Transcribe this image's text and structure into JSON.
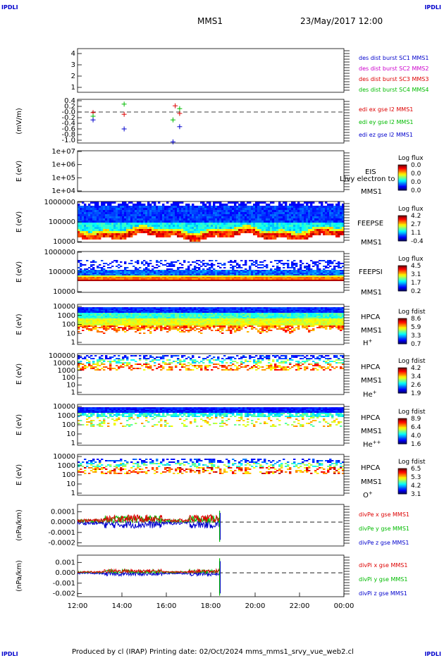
{
  "header": {
    "corner_tl": "IPDLI",
    "corner_tr": "IPDLI",
    "corner_bl": "IPDLI",
    "corner_br": "IPDLI",
    "mission": "MMS1",
    "datetime": "23/May/2017 12:00"
  },
  "footer": {
    "text": "Produced by cl (IRAP)   Printing date: 02/Oct/2024   mms_mms1_srvy_vue_web2.cl"
  },
  "colors": {
    "blue": "#0000cc",
    "magenta": "#cc00cc",
    "red": "#dd0000",
    "green": "#00bb00"
  },
  "chart_data": [
    {
      "id": "des",
      "type": "line",
      "ylabel": "",
      "yticks": [
        "1",
        "2",
        "3",
        "4"
      ],
      "labels": [
        {
          "text": "des dist burst SC1 MMS1",
          "color": "#0000cc"
        },
        {
          "text": "des dist burst SC2 MMS2",
          "color": "#cc00cc"
        },
        {
          "text": "des dist burst SC3 MMS3",
          "color": "#dd0000"
        },
        {
          "text": "des dist burst SC4 MMS4",
          "color": "#00bb00"
        }
      ]
    },
    {
      "id": "edi",
      "type": "scatter",
      "ylabel": "(mV/m)",
      "yticks": [
        "0.4",
        "0.2",
        "-0.0",
        "-0.2",
        "-0.4",
        "-0.6",
        "-0.8",
        "-1.0"
      ],
      "ylim": [
        -1.1,
        0.45
      ],
      "zero_line": true,
      "labels": [
        {
          "text": "edi ex gse l2 MMS1",
          "color": "#dd0000"
        },
        {
          "text": "edi ey gse l2 MMS1",
          "color": "#00bb00"
        },
        {
          "text": "edi ez gse l2 MMS1",
          "color": "#0000cc"
        }
      ],
      "series": [
        {
          "name": "edi ex gse l2 MMS1",
          "color": "#dd0000",
          "points": [
            [
              12.7,
              -0.02
            ],
            [
              14.1,
              -0.08
            ],
            [
              16.4,
              0.22
            ],
            [
              16.6,
              -0.05
            ]
          ]
        },
        {
          "name": "edi ey gse l2 MMS1",
          "color": "#00bb00",
          "points": [
            [
              12.7,
              -0.15
            ],
            [
              14.1,
              0.28
            ],
            [
              16.3,
              -0.28
            ],
            [
              16.6,
              0.12
            ]
          ]
        },
        {
          "name": "edi ez gse l2 MMS1",
          "color": "#0000cc",
          "points": [
            [
              12.7,
              -0.28
            ],
            [
              14.1,
              -0.6
            ],
            [
              16.3,
              -1.06
            ],
            [
              16.6,
              -0.52
            ]
          ]
        }
      ]
    },
    {
      "id": "eis",
      "type": "heatmap",
      "ylabel": "E (eV)",
      "yticks": [
        "1e+07",
        "1e+06",
        "1e+05",
        "1e+04"
      ],
      "labels": [
        {
          "text": "EIS"
        },
        {
          "text": "MMS1"
        }
      ],
      "overlap_text": "L)vy electron to",
      "cbar": {
        "title": "Log flux",
        "ticks": [
          "0.0",
          "0.0",
          "0.0",
          "0.0"
        ]
      }
    },
    {
      "id": "feepse",
      "type": "heatmap",
      "ylabel": "E (eV)",
      "yticks": [
        "1000000",
        "100000",
        "10000"
      ],
      "labels": [
        {
          "text": "FEEPSE"
        },
        {
          "text": "MMS1"
        }
      ],
      "cbar": {
        "title": "Log flux",
        "ticks": [
          "4.2",
          "2.7",
          "1.1",
          "-0.4"
        ]
      }
    },
    {
      "id": "feepsi",
      "type": "heatmap",
      "ylabel": "E (eV)",
      "yticks": [
        "1000000",
        "100000",
        "10000"
      ],
      "labels": [
        {
          "text": "FEEPSI"
        },
        {
          "text": "MMS1"
        }
      ],
      "cbar": {
        "title": "Log flux",
        "ticks": [
          "4.5",
          "3.1",
          "1.7",
          "0.2"
        ]
      }
    },
    {
      "id": "hpca_h",
      "type": "heatmap",
      "ylabel": "E (eV)",
      "yticks": [
        "10000",
        "1000",
        "100",
        "10",
        "1"
      ],
      "labels": [
        {
          "text": "HPCA"
        },
        {
          "text": "MMS1"
        },
        {
          "text": "H",
          "sup": "+"
        }
      ],
      "cbar": {
        "title": "Log fdist",
        "ticks": [
          "8.6",
          "5.9",
          "3.3",
          "0.7"
        ]
      }
    },
    {
      "id": "hpca_he",
      "type": "heatmap",
      "ylabel": "E (eV)",
      "yticks": [
        "100000",
        "10000",
        "1000",
        "100",
        "10",
        "1"
      ],
      "labels": [
        {
          "text": "HPCA"
        },
        {
          "text": "MMS1"
        },
        {
          "text": "He",
          "sup": "+"
        }
      ],
      "cbar": {
        "title": "Log fdist",
        "ticks": [
          "4.2",
          "3.4",
          "2.6",
          "1.9"
        ]
      }
    },
    {
      "id": "hpca_hepp",
      "type": "heatmap",
      "ylabel": "E (eV)",
      "yticks": [
        "10000",
        "1000",
        "100",
        "10",
        "1"
      ],
      "labels": [
        {
          "text": "HPCA"
        },
        {
          "text": "MMS1"
        },
        {
          "text": "He",
          "sup": "++"
        }
      ],
      "cbar": {
        "title": "Log fdist",
        "ticks": [
          "8.9",
          "6.4",
          "4.0",
          "1.6"
        ]
      }
    },
    {
      "id": "hpca_o",
      "type": "heatmap",
      "ylabel": "E (eV)",
      "yticks": [
        "10000",
        "1000",
        "100",
        "10",
        "1"
      ],
      "labels": [
        {
          "text": "HPCA"
        },
        {
          "text": "MMS1"
        },
        {
          "text": "O",
          "sup": "+"
        }
      ],
      "cbar": {
        "title": "Log fdist",
        "ticks": [
          "6.5",
          "5.3",
          "4.2",
          "3.1"
        ]
      }
    },
    {
      "id": "divpe",
      "type": "line",
      "ylabel": "(nPa/km)",
      "yticks": [
        "0.0001",
        "0.0000",
        "-0.0001",
        "-0.0002"
      ],
      "ylim": [
        -0.00023,
        0.00017
      ],
      "zero_line": true,
      "labels": [
        {
          "text": "divPe x gse MMS1",
          "color": "#dd0000"
        },
        {
          "text": "divPe y gse MMS1",
          "color": "#00bb00"
        },
        {
          "text": "divPe z gse MMS1",
          "color": "#0000cc"
        }
      ]
    },
    {
      "id": "divpi",
      "type": "line",
      "ylabel": "(nPa/km)",
      "yticks": [
        "0.001",
        "0.000",
        "-0.001",
        "-0.002"
      ],
      "ylim": [
        -0.0023,
        0.0017
      ],
      "zero_line": true,
      "labels": [
        {
          "text": "divPi x gse MMS1",
          "color": "#dd0000"
        },
        {
          "text": "divPi y gse MMS1",
          "color": "#00bb00"
        },
        {
          "text": "divPi z gse MMS1",
          "color": "#0000cc"
        }
      ]
    }
  ],
  "xaxis": {
    "ticks": [
      "12:00",
      "14:00",
      "16:00",
      "18:00",
      "20:00",
      "22:00",
      "00:00"
    ],
    "range_hours": [
      12,
      24
    ]
  }
}
